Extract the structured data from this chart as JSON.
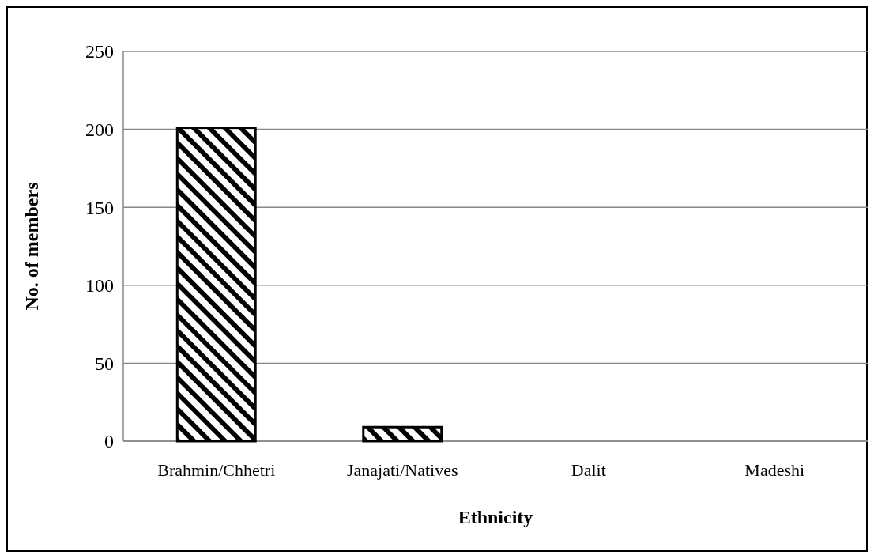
{
  "chart_data": {
    "type": "bar",
    "xlabel": "Ethnicity",
    "ylabel": "No. of members",
    "categories": [
      "Brahmin/Chhetri",
      "Janajati/Natives",
      "Dalit",
      "Madeshi"
    ],
    "values": [
      201,
      9,
      0,
      0
    ],
    "color": "#000000",
    "ylim": [
      0,
      250
    ],
    "yticks": [
      0,
      50,
      100,
      150,
      200,
      250
    ],
    "grid": "y"
  }
}
